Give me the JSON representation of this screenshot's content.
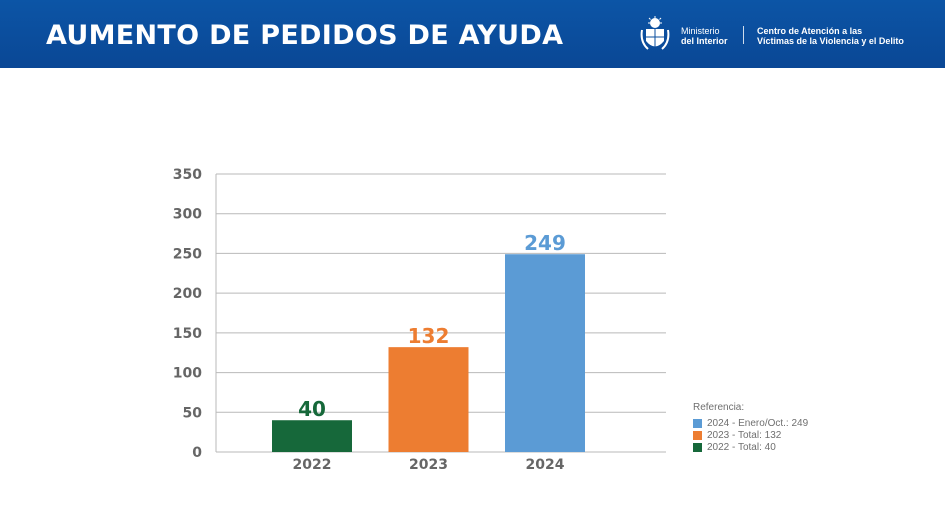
{
  "header": {
    "title": "AUMENTO DE PEDIDOS DE AYUDA",
    "ministry_line1": "Ministerio",
    "ministry_line2": "del Interior",
    "center_line1": "Centro de Atención a las",
    "center_line2": "Víctimas de la Violencia y el Delito",
    "logo_icon": "uruguay-coat-of-arms-icon",
    "background_color": "#0a4d9c"
  },
  "chart_data": {
    "type": "bar",
    "categories": [
      "2022",
      "2023",
      "2024"
    ],
    "values": [
      40,
      132,
      249
    ],
    "data_labels": [
      "40",
      "132",
      "249"
    ],
    "colors": [
      "#16683a",
      "#ed7d31",
      "#5b9bd5"
    ],
    "ylim": [
      0,
      350
    ],
    "yticks": [
      "0",
      "50",
      "100",
      "150",
      "200",
      "250",
      "300",
      "350"
    ],
    "grid": true,
    "title": "",
    "xlabel": "",
    "ylabel": ""
  },
  "legend": {
    "title": "Referencia:",
    "items": [
      {
        "label": "2024 - Enero/Oct.: 249",
        "color": "#5b9bd5"
      },
      {
        "label": "2023 - Total: 132",
        "color": "#ed7d31"
      },
      {
        "label": "2022 - Total: 40",
        "color": "#16683a"
      }
    ]
  }
}
